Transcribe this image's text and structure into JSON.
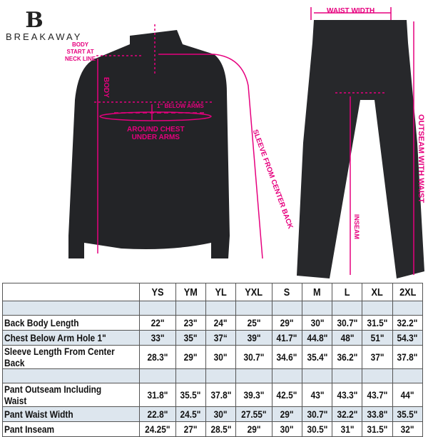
{
  "brand": {
    "name": "BREAKAWAY",
    "mark": "B"
  },
  "annotations": {
    "body_start": [
      "BODY",
      "START AT",
      "NECK LINE"
    ],
    "body": "BODY",
    "below_arms": "1\" BELOW ARMS",
    "around_chest": [
      "AROUND CHEST",
      "UNDER ARMS"
    ],
    "sleeve": "SLEEVE FROM CENTER BACK",
    "waist_width": "WAIST WIDTH",
    "inseam": "INSEAM",
    "outseam": "OUTSEAM WITH WAIST"
  },
  "accent_color": "#e6007e",
  "table": {
    "sizes": [
      "YS",
      "YM",
      "YL",
      "YXL",
      "S",
      "M",
      "L",
      "XL",
      "2XL"
    ],
    "rows": [
      {
        "label": "Back Body Length",
        "values": [
          "22\"",
          "23\"",
          "24\"",
          "25\"",
          "29\"",
          "30\"",
          "30.7\"",
          "31.5\"",
          "32.2\""
        ]
      },
      {
        "label": "Chest Below Arm Hole 1\"",
        "values": [
          "33\"",
          "35\"",
          "37“",
          "39\"",
          "41.7\"",
          "44.8\"",
          "48\"",
          "51\"",
          "54.3\""
        ]
      },
      {
        "label": "Sleeve Length From Center Back",
        "values": [
          "28.3\"",
          "29\"",
          "30\"",
          "30.7\"",
          "34.6\"",
          "35.4\"",
          "36.2\"",
          "37\"",
          "37.8\""
        ]
      },
      {
        "label": "Pant Outseam Including Waist",
        "values": [
          "31.8\"",
          "35.5\"",
          "37.8\"",
          "39.3\"",
          "42.5\"",
          "43\"",
          "43.3\"",
          "43.7\"",
          "44\""
        ]
      },
      {
        "label": "Pant Waist Width",
        "values": [
          "22.8\"",
          "24.5\"",
          "30\"",
          "27.55\"",
          "29\"",
          "30.7\"",
          "32.2\"",
          "33.8\"",
          "35.5\""
        ]
      },
      {
        "label": "Pant Inseam",
        "values": [
          "24.25\"",
          "27\"",
          "28.5\"",
          "29\"",
          "30\"",
          "30.5\"",
          "31\"",
          "31.5\"",
          "32\""
        ]
      }
    ]
  }
}
